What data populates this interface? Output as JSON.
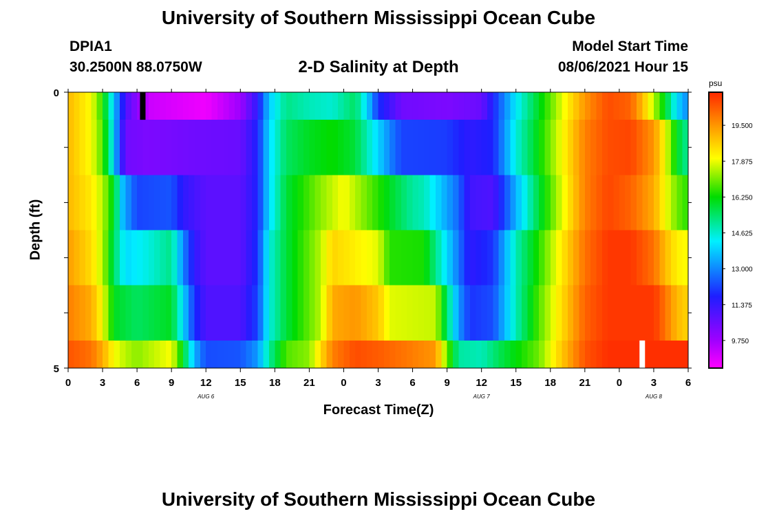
{
  "page": {
    "title_top": "University of Southern Mississippi Ocean Cube",
    "title_bottom": "University of Southern Mississippi Ocean Cube",
    "station_id": "DPIA1",
    "station_coords": "30.2500N  88.0750W",
    "plot_title": "2-D Salinity at Depth",
    "model_start_label": "Model Start Time",
    "model_start_value": "08/06/2021 Hour 15"
  },
  "chart_data": {
    "type": "heatmap",
    "title": "2-D Salinity at Depth",
    "xlabel": "Forecast Time(Z)",
    "ylabel": "Depth (ft)",
    "x_range_hours": [
      0,
      54
    ],
    "y_range_ft": [
      0,
      5
    ],
    "x_tick_labels": [
      "0",
      "3",
      "6",
      "9",
      "12",
      "15",
      "18",
      "21",
      "0",
      "3",
      "6",
      "9",
      "12",
      "15",
      "18",
      "21",
      "0",
      "3",
      "6"
    ],
    "day_labels": [
      {
        "text": "AUG 6",
        "hour": 12
      },
      {
        "text": "AUG 7",
        "hour": 36
      },
      {
        "text": "AUG 8",
        "hour": 51
      }
    ],
    "y_tick_labels": [
      {
        "text": "0",
        "depth": 0
      },
      {
        "text": "5",
        "depth": 5
      }
    ],
    "colorbar": {
      "unit": "psu",
      "min": 8.5,
      "max": 21.0,
      "ticks": [
        "19.500",
        "17.875",
        "16.250",
        "14.625",
        "13.000",
        "11.375",
        "9.750"
      ]
    },
    "row_depth_bounds_ft": [
      [
        0,
        0.5
      ],
      [
        0.5,
        1.5
      ],
      [
        1.5,
        2.5
      ],
      [
        2.5,
        3.5
      ],
      [
        3.5,
        4.5
      ],
      [
        4.5,
        5.0
      ]
    ],
    "rows": [
      {
        "name": "layer-1",
        "keys": [
          [
            0,
            19.0
          ],
          [
            2,
            18.0
          ],
          [
            3,
            16.5
          ],
          [
            4,
            13.8
          ],
          [
            5,
            11.0
          ],
          [
            7,
            9.2
          ],
          [
            12,
            8.7
          ],
          [
            15,
            9.8
          ],
          [
            16.5,
            11.5
          ],
          [
            17.5,
            13.8
          ],
          [
            19,
            15.2
          ],
          [
            21,
            14.8
          ],
          [
            23,
            14.6
          ],
          [
            25,
            15.5
          ],
          [
            26,
            14.0
          ],
          [
            27,
            12.0
          ],
          [
            29,
            10.5
          ],
          [
            33,
            10.3
          ],
          [
            36,
            10.6
          ],
          [
            37,
            11.8
          ],
          [
            39,
            14.2
          ],
          [
            41,
            16.0
          ],
          [
            43,
            17.8
          ],
          [
            45,
            19.5
          ],
          [
            47,
            20.5
          ],
          [
            49,
            20.2
          ],
          [
            50,
            19.0
          ],
          [
            51,
            17.5
          ],
          [
            52,
            16.0
          ],
          [
            53,
            14.0
          ],
          [
            54,
            13.0
          ]
        ]
      },
      {
        "name": "layer-2",
        "keys": [
          [
            0,
            19.0
          ],
          [
            2,
            18.0
          ],
          [
            3,
            16.8
          ],
          [
            4,
            14.0
          ],
          [
            4.5,
            12.0
          ],
          [
            5,
            10.5
          ],
          [
            7,
            10.3
          ],
          [
            11,
            10.5
          ],
          [
            15,
            10.6
          ],
          [
            16.5,
            11.8
          ],
          [
            17.5,
            14.0
          ],
          [
            19,
            15.5
          ],
          [
            21,
            16.0
          ],
          [
            23,
            16.3
          ],
          [
            25,
            15.8
          ],
          [
            28,
            13.0
          ],
          [
            29,
            12.2
          ],
          [
            33,
            12.1
          ],
          [
            35,
            11.5
          ],
          [
            37,
            11.8
          ],
          [
            39,
            14.5
          ],
          [
            41,
            16.2
          ],
          [
            43,
            18.0
          ],
          [
            45,
            19.8
          ],
          [
            47,
            20.5
          ],
          [
            49,
            20.6
          ],
          [
            51,
            19.5
          ],
          [
            52,
            18.0
          ],
          [
            53,
            16.0
          ],
          [
            54,
            15.0
          ]
        ]
      },
      {
        "name": "layer-3",
        "keys": [
          [
            0,
            19.0
          ],
          [
            2,
            18.3
          ],
          [
            3,
            17.5
          ],
          [
            4,
            16.0
          ],
          [
            4.8,
            13.5
          ],
          [
            6,
            12.2
          ],
          [
            9,
            12.4
          ],
          [
            10,
            11.5
          ],
          [
            12,
            10.8
          ],
          [
            15,
            10.8
          ],
          [
            16.5,
            11.8
          ],
          [
            17.5,
            14.0
          ],
          [
            19,
            15.8
          ],
          [
            22,
            17.2
          ],
          [
            24,
            18.0
          ],
          [
            27,
            16.5
          ],
          [
            30,
            15.0
          ],
          [
            31,
            14.8
          ],
          [
            34,
            12.6
          ],
          [
            35,
            11.2
          ],
          [
            37,
            11.0
          ],
          [
            39,
            13.5
          ],
          [
            41,
            15.8
          ],
          [
            43,
            17.8
          ],
          [
            45,
            19.8
          ],
          [
            47,
            20.6
          ],
          [
            49,
            20.2
          ],
          [
            51,
            19.2
          ],
          [
            52,
            18.0
          ],
          [
            53,
            17.0
          ],
          [
            54,
            16.5
          ]
        ]
      },
      {
        "name": "layer-4",
        "keys": [
          [
            0,
            19.4
          ],
          [
            2,
            18.5
          ],
          [
            3,
            17.5
          ],
          [
            4,
            15.5
          ],
          [
            5,
            14.0
          ],
          [
            7,
            14.5
          ],
          [
            9,
            15.2
          ],
          [
            10,
            13.0
          ],
          [
            11,
            11.5
          ],
          [
            12,
            10.8
          ],
          [
            15,
            10.8
          ],
          [
            16.5,
            12.0
          ],
          [
            17.5,
            14.5
          ],
          [
            19,
            15.8
          ],
          [
            22,
            17.5
          ],
          [
            23,
            18.6
          ],
          [
            25,
            18.2
          ],
          [
            27,
            17.8
          ],
          [
            28,
            16.5
          ],
          [
            31,
            16.4
          ],
          [
            34,
            12.8
          ],
          [
            35,
            11.5
          ],
          [
            37,
            12.0
          ],
          [
            39,
            14.8
          ],
          [
            41,
            16.5
          ],
          [
            43,
            18.3
          ],
          [
            45,
            20.0
          ],
          [
            47,
            20.8
          ],
          [
            49,
            20.8
          ],
          [
            51,
            20.0
          ],
          [
            52,
            19.0
          ],
          [
            53,
            18.2
          ],
          [
            54,
            18.0
          ]
        ]
      },
      {
        "name": "layer-5",
        "keys": [
          [
            0,
            19.8
          ],
          [
            2,
            19.2
          ],
          [
            3,
            18.0
          ],
          [
            4,
            16.0
          ],
          [
            6,
            15.5
          ],
          [
            9,
            16.0
          ],
          [
            10,
            14.0
          ],
          [
            11,
            12.0
          ],
          [
            12,
            11.0
          ],
          [
            15,
            11.0
          ],
          [
            16.5,
            12.2
          ],
          [
            17.5,
            14.5
          ],
          [
            19,
            15.8
          ],
          [
            22,
            17.5
          ],
          [
            23,
            19.2
          ],
          [
            25,
            19.5
          ],
          [
            27,
            18.8
          ],
          [
            28,
            17.8
          ],
          [
            32,
            17.6
          ],
          [
            34,
            13.2
          ],
          [
            35,
            12.0
          ],
          [
            37,
            12.3
          ],
          [
            39,
            14.8
          ],
          [
            41,
            16.8
          ],
          [
            43,
            18.5
          ],
          [
            45,
            20.2
          ],
          [
            47,
            20.8
          ],
          [
            51,
            20.8
          ],
          [
            52,
            20.0
          ],
          [
            53,
            19.0
          ],
          [
            54,
            18.6
          ]
        ]
      },
      {
        "name": "layer-6",
        "keys": [
          [
            0,
            20.4
          ],
          [
            2,
            20.0
          ],
          [
            3,
            19.2
          ],
          [
            4,
            18.0
          ],
          [
            5,
            17.5
          ],
          [
            6,
            17.2
          ],
          [
            9,
            18.0
          ],
          [
            10,
            16.0
          ],
          [
            11,
            13.5
          ],
          [
            12,
            12.3
          ],
          [
            15,
            12.4
          ],
          [
            16.5,
            13.2
          ],
          [
            17.5,
            15.0
          ],
          [
            19,
            16.8
          ],
          [
            21,
            17.2
          ],
          [
            23,
            19.8
          ],
          [
            25,
            20.5
          ],
          [
            27,
            20.3
          ],
          [
            29,
            20.0
          ],
          [
            32,
            19.5
          ],
          [
            33,
            17.0
          ],
          [
            34,
            15.0
          ],
          [
            36,
            14.8
          ],
          [
            38,
            15.8
          ],
          [
            41,
            17.0
          ],
          [
            43,
            18.8
          ],
          [
            45,
            20.4
          ],
          [
            47,
            20.9
          ],
          [
            54,
            20.9
          ]
        ]
      }
    ],
    "markers": [
      {
        "name": "black-marker",
        "hour": 6.5,
        "depth_from": 0,
        "depth_to": 0.5,
        "color": "#000000"
      },
      {
        "name": "white-marker",
        "hour": 50,
        "depth_from": 4.5,
        "depth_to": 5.0,
        "color": "#ffffff"
      }
    ]
  }
}
